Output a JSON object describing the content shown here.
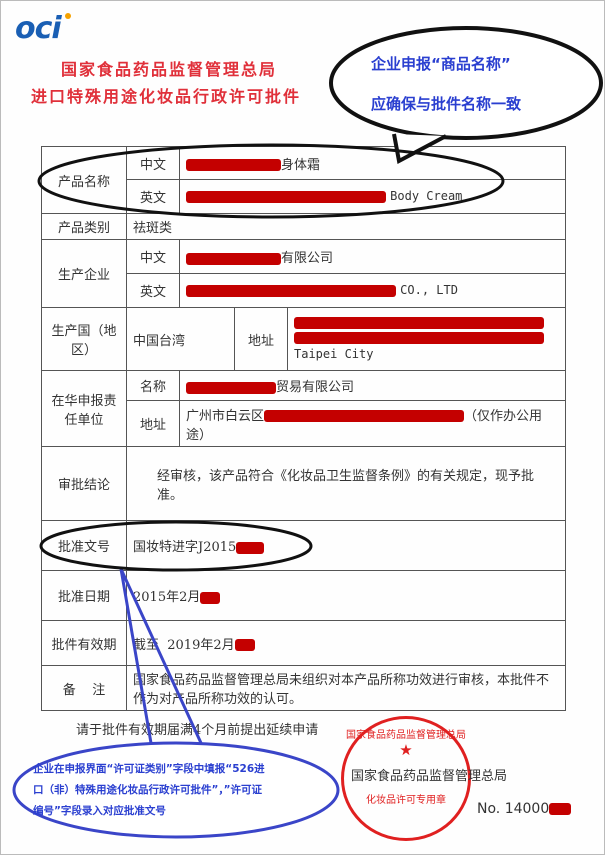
{
  "logo": "oci",
  "header": {
    "line1": "国家食品药品监督管理总局",
    "line2": "进口特殊用途化妆品行政许可批件"
  },
  "callout_top": {
    "line1": "企业申报“商品名称”",
    "line2": "应确保与批件名称一致"
  },
  "callout_mid": {
    "line1": "企业在申报界面“许可证类别”字段中填报“526进",
    "line2": "口（非）特殊用途化妆品行政许可批件”，”许可证",
    "line3": "编号”字段录入对应批准文号"
  },
  "table": {
    "product_name": {
      "label": "产品名称",
      "cn_label": "中文",
      "cn_value": "身体霜",
      "en_label": "英文",
      "en_value": "Body Cream"
    },
    "category": {
      "label": "产品类别",
      "value": "祛斑类"
    },
    "manufacturer": {
      "label": "生产企业",
      "cn_label": "中文",
      "cn_value": "有限公司",
      "en_label": "英文",
      "en_value": "CO., LTD"
    },
    "country": {
      "label": "生产国（地区）",
      "value": "中国台湾",
      "addr_label": "地址",
      "addr_value": "Taipei City"
    },
    "agent": {
      "label": "在华申报责任单位",
      "name_label": "名称",
      "name_value": "贸易有限公司",
      "addr_label": "地址",
      "addr_prefix": "广州市白云区",
      "addr_suffix": "（仅作办公用途）"
    },
    "conclusion": {
      "label": "审批结论",
      "value": "经审核，该产品符合《化妆品卫生监督条例》的有关规定，现予批准。"
    },
    "approval_no": {
      "label": "批准文号",
      "value": "国妆特进字J2015"
    },
    "approval_date": {
      "label": "批准日期",
      "value": "2015年2月"
    },
    "valid": {
      "label": "批件有效期",
      "value": "截至  2019年2月"
    },
    "remark": {
      "label": "备    注",
      "value": "国家食品药品监督管理总局未组织对本产品所称功效进行审核，本批件不作为对产品所称功效的认可。"
    }
  },
  "footer": {
    "note": "请于批件有效期届满4个月前提出延续申请",
    "authority": "国家食品药品监督管理总局",
    "number": "No. 14000"
  },
  "stamp": {
    "ring": "国家食品药品监督管理总局",
    "center": "化妆品许可专用章"
  },
  "colors": {
    "title": "#e0303a",
    "callout_text": "#2a3fd0",
    "redaction": "#c40000"
  }
}
